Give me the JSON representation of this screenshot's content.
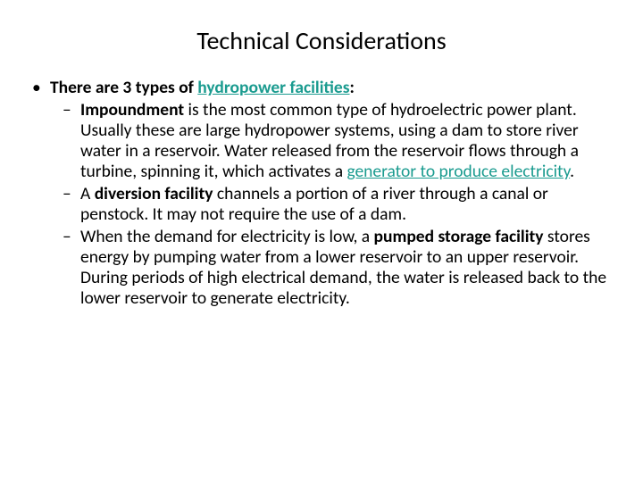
{
  "colors": {
    "background": "#ffffff",
    "text": "#000000",
    "link": "#1a9b8f"
  },
  "typography": {
    "title_fontsize": 28,
    "body_fontsize": 19.5,
    "font_family": "Calibri",
    "line_height": 1.18
  },
  "title": "Technical Considerations",
  "bullet_marker_l1": "•",
  "bullet_marker_l2": "–",
  "intro": {
    "prefix": "There are 3 types of ",
    "link": "hydropower facilities",
    "suffix": ":"
  },
  "items": [
    {
      "bold_lead": "Impoundment",
      "mid1": " is the most common type of hydroelectric power plant.  Usually these are large hydropower systems, using a dam to store river water in a reservoir. Water released from the reservoir flows through a turbine, spinning it, which activates a ",
      "link": "generator to produce electricity",
      "after_link": "."
    },
    {
      "pre": "A ",
      "bold_lead": "diversion facility",
      "mid1": " channels a portion of a river through a canal or penstock. It may not require the use of a dam."
    },
    {
      "pre": "When the demand for electricity is low, a ",
      "bold_lead": "pumped storage facility",
      "mid1": " stores energy by pumping water from a lower reservoir to an upper reservoir. During periods of high electrical demand, the water is released back to the lower reservoir to generate electricity."
    }
  ]
}
